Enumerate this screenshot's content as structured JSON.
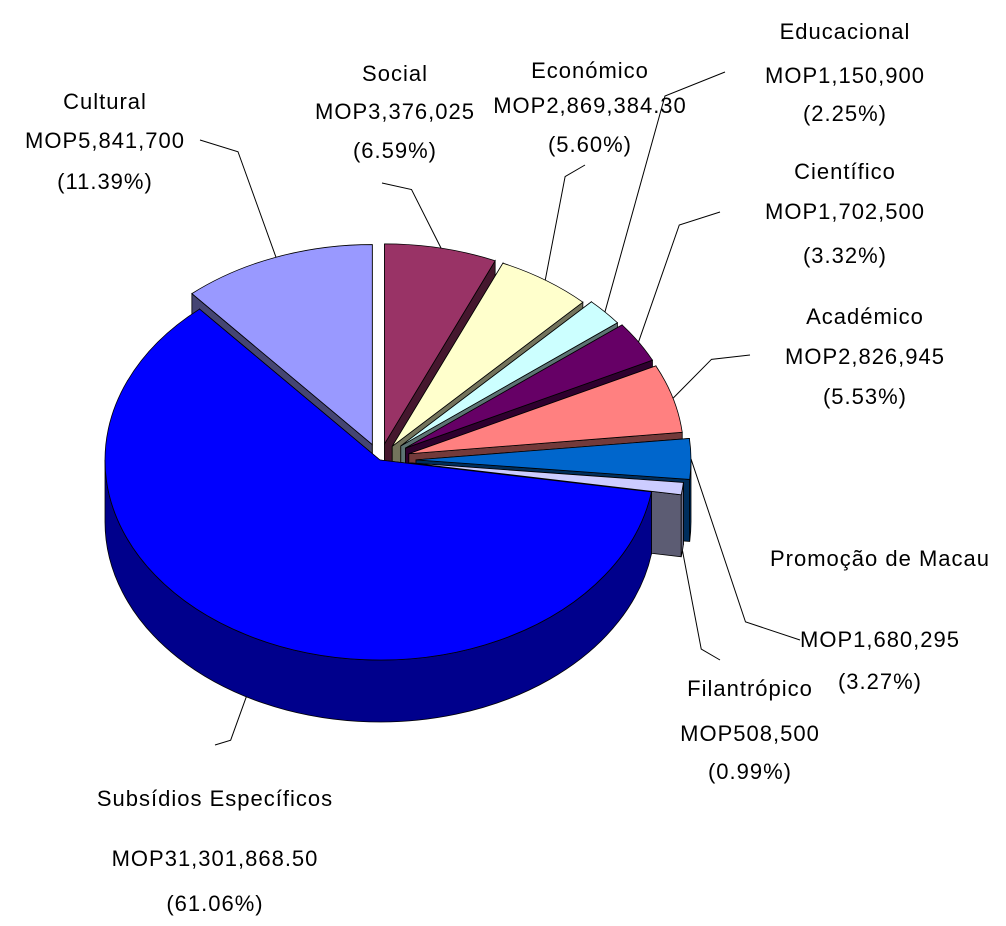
{
  "chart_data": {
    "type": "pie",
    "categories": [
      "Social",
      "Económico",
      "Educacional",
      "Científico",
      "Académico",
      "Promoção de Macau",
      "Filantrópico",
      "Subsídios Específicos",
      "Cultural"
    ],
    "amount_labels": [
      "MOP3,376,025",
      "MOP2,869,384.30",
      "MOP1,150,900",
      "MOP1,702,500",
      "MOP2,826,945",
      "MOP1,680,295",
      "MOP508,500",
      "MOP31,301,868.50",
      "MOP5,841,700"
    ],
    "values": [
      6.59,
      5.6,
      2.25,
      3.32,
      5.53,
      3.27,
      0.99,
      61.06,
      11.39
    ],
    "value_labels": [
      "(6.59%)",
      "(5.60%)",
      "(2.25%)",
      "(3.32%)",
      "(5.53%)",
      "(3.27%)",
      "(0.99%)",
      "(61.06%)",
      "(11.39%)"
    ],
    "colors": [
      "#993366",
      "#ffffcc",
      "#ccffff",
      "#660066",
      "#ff8080",
      "#0066cc",
      "#ccccff",
      "#0000ff",
      "#9999ff"
    ]
  }
}
